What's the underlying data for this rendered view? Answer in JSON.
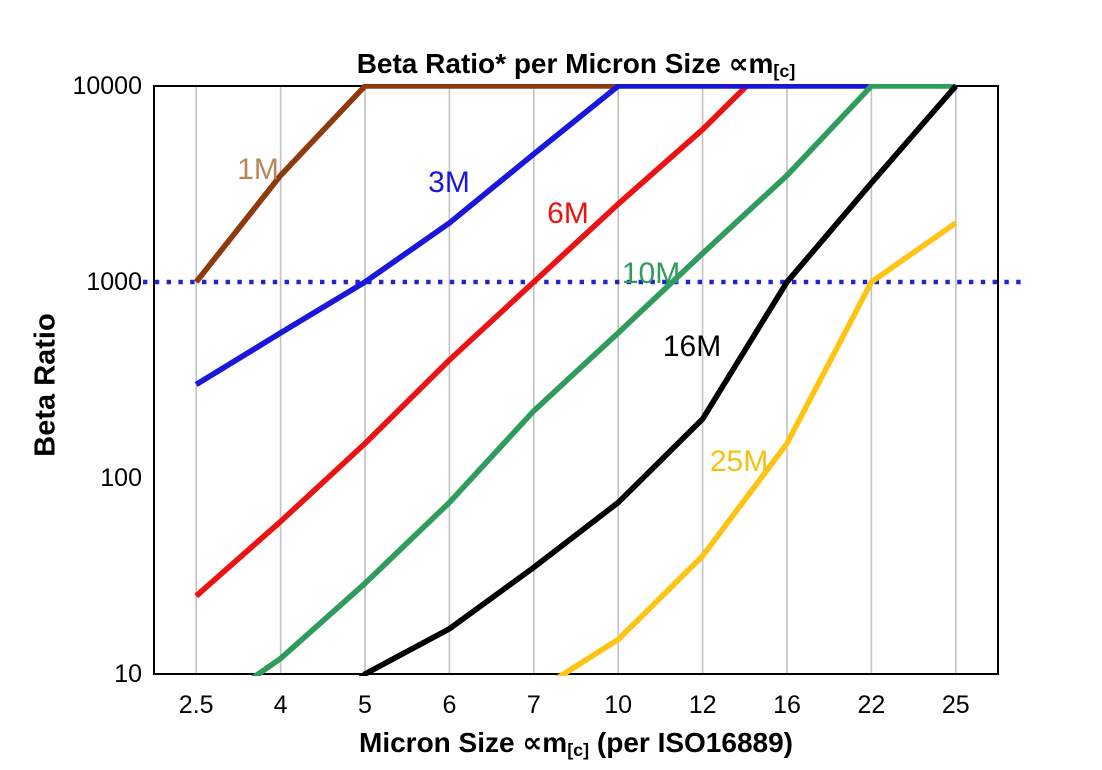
{
  "title": {
    "main": "Beta Ratio* per Micron Size ",
    "mu": "∝m",
    "sub": "[c]"
  },
  "y_axis": {
    "label": "Beta Ratio",
    "ticks": [
      "10000",
      "1000",
      "100",
      "10"
    ],
    "tick_values": [
      10000,
      1000,
      100,
      10
    ]
  },
  "x_axis": {
    "label_pre": "Micron Size ",
    "mu": "∝m",
    "sub": "[c]",
    "label_post": " (per ISO16889)",
    "ticks": [
      "2.5",
      "4",
      "5",
      "6",
      "7",
      "10",
      "12",
      "16",
      "22",
      "25"
    ]
  },
  "colors": {
    "grid": "#c2c2c2",
    "border": "#000000",
    "reference_dotted": "#2323cc",
    "background": "#ffffff"
  },
  "chart_data": {
    "type": "line",
    "title": "Beta Ratio* per Micron Size ∝m[c]",
    "xlabel": "Micron Size ∝m[c] (per ISO16889)",
    "ylabel": "Beta Ratio",
    "x_scale": "categorical",
    "y_scale": "log",
    "ylim": [
      10,
      10000
    ],
    "grid": "vertical-only",
    "categories": [
      2.5,
      4,
      5,
      6,
      7,
      10,
      12,
      16,
      22,
      25
    ],
    "reference_line": {
      "y": 1000,
      "style": "dotted",
      "color": "#2323cc",
      "extends_past_plot": true
    },
    "series": [
      {
        "name": "1M",
        "color": "#8f3a0c",
        "label_color": "#b5875b",
        "label_pos": [
          258,
          170
        ],
        "points": [
          [
            2.5,
            1000
          ],
          [
            4,
            3500
          ],
          [
            5,
            10000
          ],
          [
            10,
            10000
          ]
        ]
      },
      {
        "name": "6M",
        "color": "#ec1212",
        "label_color": "#ec1212",
        "label_pos": [
          568,
          214
        ],
        "points": [
          [
            2.5,
            25
          ],
          [
            4,
            60
          ],
          [
            5,
            150
          ],
          [
            6,
            400
          ],
          [
            7,
            1000
          ],
          [
            10,
            2500
          ],
          [
            12,
            6000
          ],
          [
            16,
            16000
          ]
        ]
      },
      {
        "name": "3M",
        "color": "#1a17dd",
        "label_color": "#1a17dd",
        "label_pos": [
          449,
          183
        ],
        "points": [
          [
            2.5,
            300
          ],
          [
            4,
            550
          ],
          [
            5,
            1000
          ],
          [
            6,
            2000
          ],
          [
            7,
            4500
          ],
          [
            10,
            10000
          ],
          [
            22,
            10000
          ]
        ]
      },
      {
        "name": "10M",
        "color": "#2f9c5c",
        "label_color": "#2f9c5c",
        "label_pos": [
          651,
          274
        ],
        "points": [
          [
            2.5,
            6
          ],
          [
            4,
            12
          ],
          [
            5,
            29
          ],
          [
            6,
            75
          ],
          [
            7,
            220
          ],
          [
            10,
            550
          ],
          [
            12,
            1400
          ],
          [
            16,
            3500
          ],
          [
            22,
            10000
          ],
          [
            25,
            10000
          ]
        ]
      },
      {
        "name": "16M",
        "color": "#000000",
        "label_color": "#000000",
        "label_pos": [
          692,
          347
        ],
        "points": [
          [
            4,
            4
          ],
          [
            5,
            10
          ],
          [
            6,
            17
          ],
          [
            7,
            35
          ],
          [
            10,
            75
          ],
          [
            12,
            200
          ],
          [
            16,
            1000
          ],
          [
            22,
            3200
          ],
          [
            25,
            10000
          ]
        ]
      },
      {
        "name": "25M",
        "color": "#ffc413",
        "label_color": "#f7c011",
        "label_pos": [
          739,
          462
        ],
        "points": [
          [
            7,
            8
          ],
          [
            10,
            15
          ],
          [
            12,
            40
          ],
          [
            16,
            150
          ],
          [
            22,
            1000
          ],
          [
            25,
            2000
          ]
        ]
      }
    ]
  }
}
